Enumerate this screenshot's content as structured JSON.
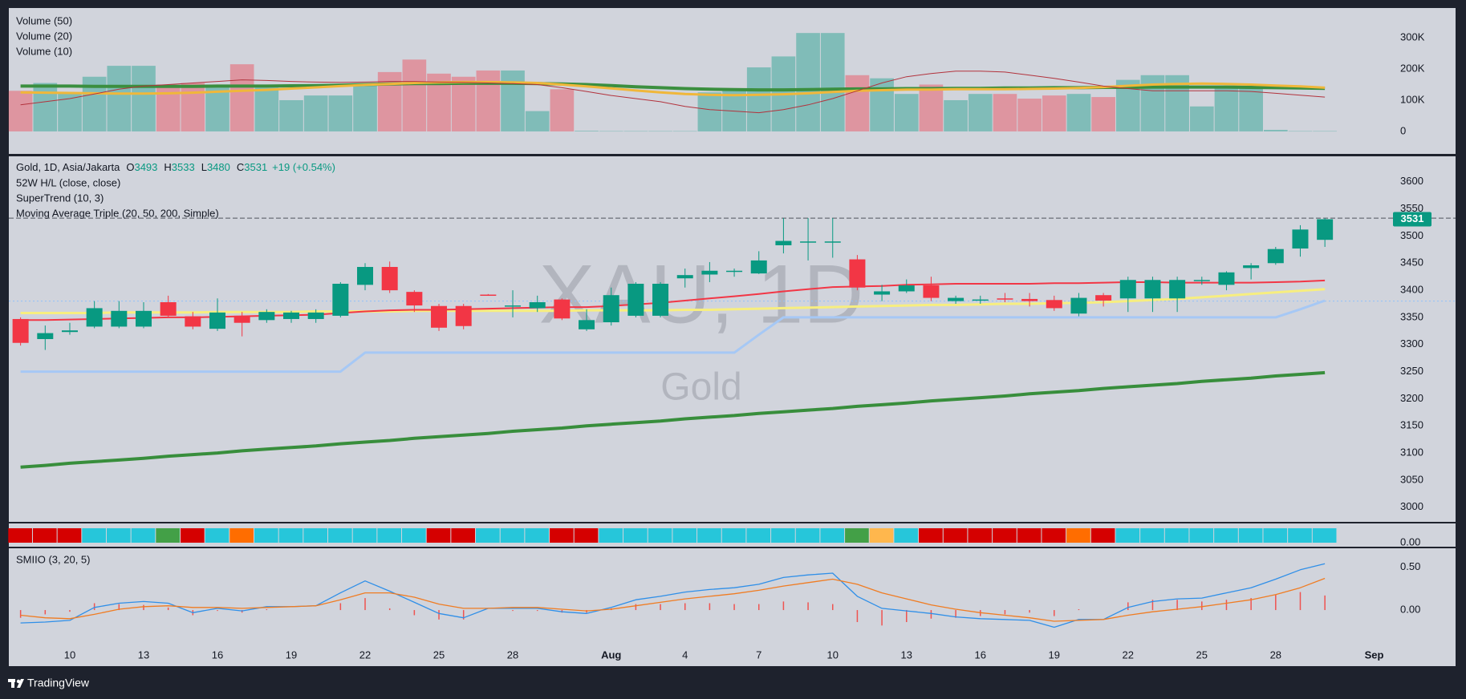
{
  "header": {
    "symbol": "Gold, 1D, Asia/Jakarta",
    "ohlc_letters": [
      "O",
      "H",
      "L",
      "C"
    ],
    "change": "+19 (+0.54%)",
    "indicators": [
      "52W H/L (close, close)",
      "SuperTrend (10, 3)",
      "Moving Average Triple (20, 50, 200, Simple)"
    ]
  },
  "watermark": {
    "line1": "XAU, 1D",
    "line2": "Gold"
  },
  "footer": {
    "brand": "TradingView"
  },
  "chart_data": [
    {
      "type": "bar",
      "up_color": "#089981",
      "down_color": "#f23645",
      "values": [
        130000,
        155000,
        125000,
        175000,
        210000,
        210000,
        150000,
        155000,
        150000,
        215000,
        140000,
        100000,
        115000,
        115000,
        150000,
        190000,
        230000,
        185000,
        175000,
        195000,
        195000,
        65000,
        135000,
        2000,
        1000,
        1000,
        1000,
        1000,
        125000,
        130000,
        205000,
        240000,
        315000,
        315000,
        180000,
        170000,
        120000,
        150000,
        100000,
        120000,
        120000,
        105000,
        115000,
        120000,
        110000,
        165000,
        180000,
        180000,
        80000,
        140000,
        140000,
        5000,
        1000,
        1000,
        null,
        null
      ],
      "series": [
        {
          "name": "Volume (50)",
          "color": "#3b8f3f",
          "width": 4,
          "values": [
            145000,
            145000,
            145000,
            144000,
            144000,
            144000,
            144000,
            144000,
            145000,
            145000,
            145000,
            146000,
            147000,
            148000,
            150000,
            152000,
            153000,
            153000,
            154000,
            154000,
            154000,
            153000,
            152000,
            150000,
            147000,
            143000,
            140000,
            137000,
            135000,
            134000,
            133000,
            133000,
            134000,
            135000,
            136000,
            136000,
            137000,
            137000,
            138000,
            138000,
            139000,
            139000,
            140000,
            140000,
            141000,
            141000,
            142000,
            142000,
            142000,
            142000,
            141000,
            140000,
            139000,
            138000,
            null,
            null
          ]
        },
        {
          "name": "Volume (20)",
          "color": "#f0b73a",
          "width": 3,
          "values": [
            125000,
            124000,
            123000,
            122000,
            121000,
            121000,
            122000,
            124000,
            127000,
            130000,
            133000,
            137000,
            141000,
            145000,
            149000,
            152000,
            155000,
            157000,
            158000,
            158000,
            157000,
            155000,
            150000,
            144000,
            138000,
            131000,
            125000,
            120000,
            117000,
            116000,
            117000,
            119000,
            122000,
            126000,
            130000,
            132000,
            134000,
            134000,
            135000,
            135000,
            135000,
            136000,
            137000,
            139000,
            142000,
            146000,
            150000,
            152000,
            153000,
            152000,
            150000,
            147000,
            144000,
            140000,
            null,
            null
          ]
        },
        {
          "name": "Volume (10)",
          "color": "#b2323c",
          "width": 1,
          "values": [
            85000,
            95000,
            105000,
            120000,
            135000,
            145000,
            150000,
            155000,
            160000,
            165000,
            163000,
            160000,
            158000,
            157000,
            158000,
            160000,
            160000,
            158000,
            157000,
            155000,
            153000,
            150000,
            140000,
            128000,
            115000,
            105000,
            95000,
            80000,
            70000,
            65000,
            60000,
            70000,
            85000,
            105000,
            130000,
            155000,
            175000,
            185000,
            193000,
            193000,
            190000,
            180000,
            170000,
            158000,
            145000,
            137000,
            130000,
            130000,
            130000,
            130000,
            128000,
            122000,
            116000,
            110000,
            null,
            null
          ]
        }
      ],
      "ylim": [
        -72000,
        395000
      ],
      "yticks": [
        0,
        {
          "value": 100000,
          "label": "100K"
        },
        {
          "value": 200000,
          "label": "200K"
        },
        {
          "value": 300000,
          "label": "300K"
        }
      ]
    },
    {
      "type": "candlestick",
      "up_color": "#089981",
      "down_color": "#f23645",
      "open": [
        3347,
        3310,
        3323,
        3333,
        3333,
        3333,
        3378,
        3352,
        3329,
        3353,
        3345,
        3347,
        3347,
        3353,
        3410,
        3443,
        3397,
        3371,
        3371,
        3392,
        3370,
        3367,
        3383,
        3328,
        3341,
        3353,
        3353,
        3422,
        3429,
        3435,
        3431,
        3483,
        3489,
        3489,
        3457,
        3392,
        3398,
        3409,
        3380,
        3382,
        3385,
        3384,
        3382,
        3357,
        3391,
        3385,
        3385,
        3385,
        3417,
        3410,
        3441,
        3450,
        3477,
        3493,
        null,
        null
      ],
      "high": [
        3350,
        3335,
        3340,
        3380,
        3380,
        3378,
        3390,
        3360,
        3385,
        3360,
        3365,
        3362,
        3365,
        3415,
        3450,
        3453,
        3400,
        3375,
        3375,
        3393,
        3400,
        3390,
        3385,
        3365,
        3405,
        3415,
        3415,
        3440,
        3452,
        3440,
        3472,
        3533,
        3533,
        3533,
        3465,
        3410,
        3420,
        3425,
        3390,
        3390,
        3395,
        3395,
        3390,
        3395,
        3395,
        3425,
        3425,
        3425,
        3425,
        3435,
        3450,
        3480,
        3520,
        3533,
        null,
        null
      ],
      "low": [
        3298,
        3290,
        3318,
        3330,
        3330,
        3330,
        3350,
        3328,
        3325,
        3315,
        3340,
        3340,
        3340,
        3350,
        3400,
        3395,
        3360,
        3325,
        3328,
        3390,
        3350,
        3360,
        3345,
        3325,
        3335,
        3350,
        3350,
        3405,
        3415,
        3425,
        3430,
        3468,
        3455,
        3460,
        3400,
        3380,
        3395,
        3380,
        3375,
        3375,
        3378,
        3370,
        3362,
        3352,
        3370,
        3360,
        3360,
        3360,
        3410,
        3400,
        3420,
        3447,
        3462,
        3480,
        null,
        null
      ],
      "close": [
        3303,
        3321,
        3326,
        3367,
        3362,
        3362,
        3353,
        3333,
        3359,
        3340,
        3360,
        3359,
        3359,
        3412,
        3443,
        3400,
        3372,
        3331,
        3334,
        3391,
        3372,
        3378,
        3348,
        3345,
        3391,
        3412,
        3412,
        3428,
        3436,
        3436,
        3455,
        3491,
        3490,
        3490,
        3405,
        3398,
        3409,
        3386,
        3386,
        3383,
        3384,
        3380,
        3367,
        3386,
        3381,
        3419,
        3419,
        3419,
        3419,
        3433,
        3446,
        3476,
        3512,
        3531,
        null,
        null
      ],
      "series": [
        {
          "color": "#a6c8f5",
          "width": 3,
          "values": [
            3250,
            3250,
            3250,
            3250,
            3250,
            3250,
            3250,
            3250,
            3250,
            3250,
            3250,
            3250,
            3250,
            3250,
            3285,
            3285,
            3285,
            3285,
            3285,
            3285,
            3285,
            3285,
            3285,
            3285,
            3285,
            3285,
            3285,
            3285,
            3285,
            3285,
            3318,
            3350,
            3350,
            3350,
            3350,
            3350,
            3350,
            3350,
            3350,
            3350,
            3350,
            3350,
            3350,
            3350,
            3350,
            3350,
            3350,
            3350,
            3350,
            3350,
            3350,
            3350,
            3365,
            3381,
            null,
            null
          ]
        },
        {
          "color": "#388e3c",
          "width": 4,
          "values": [
            3074,
            3077,
            3081,
            3084,
            3087,
            3090,
            3094,
            3097,
            3100,
            3104,
            3107,
            3110,
            3113,
            3117,
            3120,
            3123,
            3127,
            3130,
            3133,
            3136,
            3140,
            3143,
            3146,
            3150,
            3153,
            3156,
            3159,
            3163,
            3166,
            3169,
            3173,
            3176,
            3179,
            3182,
            3186,
            3189,
            3192,
            3196,
            3199,
            3202,
            3205,
            3209,
            3212,
            3215,
            3219,
            3222,
            3225,
            3228,
            3232,
            3235,
            3238,
            3242,
            3245,
            3248,
            null,
            null
          ]
        },
        {
          "color": "#f7ee7f",
          "width": 3,
          "values": [
            3358,
            3358,
            3358,
            3358,
            3359,
            3359,
            3359,
            3359,
            3360,
            3360,
            3360,
            3360,
            3361,
            3361,
            3361,
            3361,
            3362,
            3362,
            3362,
            3362,
            3362,
            3362,
            3362,
            3363,
            3363,
            3363,
            3363,
            3364,
            3364,
            3365,
            3366,
            3367,
            3368,
            3369,
            3370,
            3371,
            3372,
            3373,
            3373,
            3374,
            3375,
            3375,
            3376,
            3377,
            3378,
            3380,
            3382,
            3384,
            3387,
            3390,
            3393,
            3396,
            3399,
            3402,
            null,
            null
          ]
        },
        {
          "color": "#f23645",
          "width": 2,
          "values": [
            3345,
            3345,
            3346,
            3347,
            3348,
            3349,
            3350,
            3350,
            3351,
            3352,
            3353,
            3354,
            3355,
            3358,
            3361,
            3363,
            3364,
            3364,
            3365,
            3366,
            3367,
            3368,
            3369,
            3369,
            3371,
            3374,
            3377,
            3381,
            3385,
            3389,
            3393,
            3398,
            3402,
            3406,
            3407,
            3408,
            3410,
            3411,
            3412,
            3412,
            3412,
            3412,
            3413,
            3413,
            3414,
            3415,
            3415,
            3414,
            3414,
            3414,
            3414,
            3415,
            3416,
            3418,
            null,
            null
          ]
        }
      ],
      "ref_lines": [
        {
          "value": 3533,
          "color": "#50535e",
          "dash": "6 3"
        },
        {
          "value": 3380,
          "color": "#90bff9",
          "dash": "2 3"
        }
      ],
      "ylim": [
        2973,
        3647
      ],
      "yticks": [
        3000,
        3050,
        3100,
        3150,
        3200,
        3250,
        3300,
        3350,
        3400,
        3450,
        3500,
        3550,
        3600
      ]
    },
    {
      "type": "strip",
      "colors": [
        "#d50000",
        "#d50000",
        "#d50000",
        "#26c6da",
        "#26c6da",
        "#26c6da",
        "#43a047",
        "#d50000",
        "#26c6da",
        "#ff6d00",
        "#26c6da",
        "#26c6da",
        "#26c6da",
        "#26c6da",
        "#26c6da",
        "#26c6da",
        "#26c6da",
        "#d50000",
        "#d50000",
        "#26c6da",
        "#26c6da",
        "#26c6da",
        "#d50000",
        "#d50000",
        "#26c6da",
        "#26c6da",
        "#26c6da",
        "#26c6da",
        "#26c6da",
        "#26c6da",
        "#26c6da",
        "#26c6da",
        "#26c6da",
        "#26c6da",
        "#43a047",
        "#ffb74d",
        "#26c6da",
        "#d50000",
        "#d50000",
        "#d50000",
        "#d50000",
        "#d50000",
        "#d50000",
        "#ff6d00",
        "#d50000",
        "#26c6da",
        "#26c6da",
        "#26c6da",
        "#26c6da",
        "#26c6da",
        "#26c6da",
        "#26c6da",
        "#26c6da",
        "#26c6da",
        null,
        null
      ],
      "ylim": [
        -0.2,
        1
      ],
      "yticks": [
        {
          "value": 0,
          "label": "0.00"
        }
      ]
    },
    {
      "type": "line",
      "title": "SMIIO (3, 20, 5)",
      "categories": [
        null,
        null,
        "10",
        null,
        null,
        "13",
        null,
        null,
        "16",
        null,
        null,
        "19",
        null,
        null,
        "22",
        null,
        null,
        "25",
        null,
        null,
        "28",
        null,
        null,
        null,
        "Aug",
        null,
        null,
        "4",
        null,
        null,
        "7",
        null,
        null,
        "10",
        null,
        null,
        "13",
        null,
        null,
        "16",
        null,
        null,
        "19",
        null,
        null,
        "22",
        null,
        null,
        "25",
        null,
        null,
        "28",
        null,
        null,
        null,
        "Sep"
      ],
      "series": [
        {
          "color": "#2f8fe8",
          "values": [
            -0.15,
            -0.14,
            -0.12,
            0.03,
            0.08,
            0.1,
            0.08,
            -0.03,
            0.02,
            -0.01,
            0.04,
            0.04,
            0.05,
            0.2,
            0.34,
            0.22,
            0.09,
            -0.04,
            -0.09,
            0.02,
            0.02,
            0.02,
            -0.02,
            -0.04,
            0.03,
            0.12,
            0.16,
            0.21,
            0.24,
            0.26,
            0.3,
            0.38,
            0.41,
            0.43,
            0.16,
            0.02,
            -0.01,
            -0.04,
            -0.08,
            -0.1,
            -0.11,
            -0.12,
            -0.2,
            -0.11,
            -0.11,
            0.03,
            0.1,
            0.13,
            0.14,
            0.2,
            0.26,
            0.36,
            0.47,
            0.54,
            null,
            null
          ]
        },
        {
          "color": "#f07c22",
          "values": [
            -0.06,
            -0.09,
            -0.1,
            -0.05,
            0.01,
            0.04,
            0.05,
            0.03,
            0.03,
            0.02,
            0.03,
            0.04,
            0.05,
            0.12,
            0.2,
            0.2,
            0.15,
            0.07,
            0.02,
            0.02,
            0.03,
            0.03,
            0.01,
            -0.01,
            0.01,
            0.05,
            0.09,
            0.13,
            0.16,
            0.19,
            0.23,
            0.28,
            0.32,
            0.36,
            0.3,
            0.2,
            0.13,
            0.06,
            0.01,
            -0.03,
            -0.06,
            -0.09,
            -0.13,
            -0.12,
            -0.11,
            -0.06,
            -0.02,
            0.01,
            0.04,
            0.08,
            0.12,
            0.18,
            0.26,
            0.37,
            null,
            null
          ]
        }
      ],
      "bars": {
        "color": "#ef5350",
        "values": [
          -0.09,
          -0.05,
          -0.02,
          0.08,
          0.07,
          0.06,
          0.03,
          -0.06,
          -0.01,
          -0.03,
          0.01,
          0,
          0,
          0.08,
          0.14,
          0.02,
          -0.06,
          -0.11,
          -0.11,
          0,
          -0.01,
          -0.01,
          -0.03,
          -0.03,
          0.02,
          0.07,
          0.07,
          0.08,
          0.08,
          0.07,
          0.07,
          0.1,
          0.09,
          0.07,
          -0.14,
          -0.18,
          -0.14,
          -0.1,
          -0.09,
          -0.07,
          -0.05,
          -0.03,
          -0.07,
          0.01,
          0,
          0.09,
          0.12,
          0.12,
          0.1,
          0.12,
          0.14,
          0.18,
          0.21,
          0.17,
          null,
          null
        ]
      },
      "ylim": [
        -0.42,
        0.72
      ],
      "yticks": [
        {
          "value": 0,
          "label": "0.00"
        },
        {
          "value": 0.5,
          "label": "0.50"
        }
      ]
    }
  ]
}
